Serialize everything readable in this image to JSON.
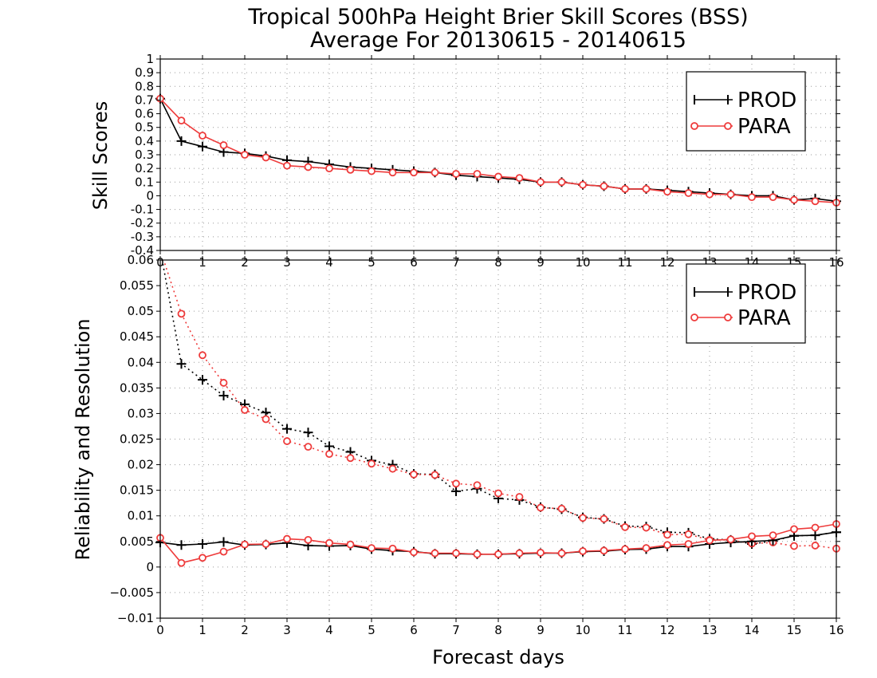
{
  "chart_data": [
    {
      "type": "line",
      "title": "Tropical 500hPa Height Brier Skill Scores (BSS)",
      "subtitle": "Average For 20130615 - 20140615",
      "xlabel": "",
      "ylabel": "Skill Scores",
      "xlim": [
        0,
        16
      ],
      "ylim": [
        -0.4,
        1.0
      ],
      "x_ticks": [
        0,
        1,
        2,
        3,
        4,
        5,
        6,
        7,
        8,
        9,
        10,
        11,
        12,
        13,
        14,
        15,
        16
      ],
      "y_ticks": [
        -0.4,
        -0.3,
        -0.2,
        -0.1,
        0,
        0.1,
        0.2,
        0.3,
        0.4,
        0.5,
        0.6,
        0.7,
        0.8,
        0.9,
        1
      ],
      "grid": true,
      "legend_position": "top-right",
      "x": [
        0,
        0.5,
        1,
        1.5,
        2,
        2.5,
        3,
        3.5,
        4,
        4.5,
        5,
        5.5,
        6,
        6.5,
        7,
        7.5,
        8,
        8.5,
        9,
        9.5,
        10,
        10.5,
        11,
        11.5,
        12,
        12.5,
        13,
        13.5,
        14,
        14.5,
        15,
        15.5,
        16
      ],
      "series": [
        {
          "name": "PROD",
          "color": "#000000",
          "marker": "plus",
          "line": "solid",
          "values": [
            0.71,
            0.4,
            0.36,
            0.32,
            0.31,
            0.29,
            0.26,
            0.25,
            0.23,
            0.21,
            0.2,
            0.19,
            0.18,
            0.17,
            0.15,
            0.14,
            0.13,
            0.12,
            0.1,
            0.1,
            0.08,
            0.07,
            0.05,
            0.05,
            0.04,
            0.03,
            0.02,
            0.01,
            0.0,
            0.0,
            -0.03,
            -0.02,
            -0.04
          ]
        },
        {
          "name": "PARA",
          "color": "#ee3b3b",
          "marker": "circle",
          "line": "solid",
          "values": [
            0.71,
            0.55,
            0.44,
            0.37,
            0.3,
            0.28,
            0.22,
            0.21,
            0.2,
            0.19,
            0.18,
            0.17,
            0.17,
            0.17,
            0.16,
            0.16,
            0.14,
            0.13,
            0.1,
            0.1,
            0.08,
            0.07,
            0.05,
            0.05,
            0.03,
            0.02,
            0.01,
            0.01,
            -0.01,
            -0.01,
            -0.03,
            -0.04,
            -0.05
          ]
        }
      ]
    },
    {
      "type": "line",
      "title": "",
      "xlabel": "Forecast days",
      "ylabel": "Reliability and Resolution",
      "xlim": [
        0,
        16
      ],
      "ylim": [
        -0.01,
        0.06
      ],
      "x_ticks": [
        0,
        1,
        2,
        3,
        4,
        5,
        6,
        7,
        8,
        9,
        10,
        11,
        12,
        13,
        14,
        15,
        16
      ],
      "y_ticks": [
        -0.01,
        -0.005,
        0,
        0.005,
        0.01,
        0.015,
        0.02,
        0.025,
        0.03,
        0.035,
        0.04,
        0.045,
        0.05,
        0.055,
        0.06
      ],
      "y_tick_labels": [
        "−0.01",
        "−0.005",
        "0",
        "0.005",
        "0.01",
        "0.015",
        "0.02",
        "0.025",
        "0.03",
        "0.035",
        "0.04",
        "0.045",
        "0.05",
        "0.055",
        "0.06"
      ],
      "grid": true,
      "legend_position": "top-right",
      "x": [
        0,
        0.5,
        1,
        1.5,
        2,
        2.5,
        3,
        3.5,
        4,
        4.5,
        5,
        5.5,
        6,
        6.5,
        7,
        7.5,
        8,
        8.5,
        9,
        9.5,
        10,
        10.5,
        11,
        11.5,
        12,
        12.5,
        13,
        13.5,
        14,
        14.5,
        15,
        15.5,
        16
      ],
      "series": [
        {
          "name": "PROD",
          "color": "#000000",
          "marker": "plus",
          "line": "dotted",
          "start_index": 1,
          "values": [
            0.062,
            0.0397,
            0.0366,
            0.0335,
            0.0318,
            0.0302,
            0.027,
            0.0263,
            0.0236,
            0.0225,
            0.0208,
            0.02,
            0.0182,
            0.0181,
            0.0148,
            0.0153,
            0.0134,
            0.0131,
            0.0117,
            0.0113,
            0.0097,
            0.0094,
            0.008,
            0.0079,
            0.0068,
            0.0067,
            0.0055,
            0.0053,
            0.0045,
            0.0051,
            0.0061,
            0.0062,
            0.0068
          ]
        },
        {
          "name": "PARA",
          "color": "#ee3b3b",
          "marker": "circle",
          "line": "dotted",
          "start_index": 1,
          "values": [
            0.062,
            0.0495,
            0.0414,
            0.036,
            0.0307,
            0.0289,
            0.0246,
            0.0235,
            0.0221,
            0.0213,
            0.0202,
            0.0192,
            0.0181,
            0.018,
            0.0163,
            0.016,
            0.0144,
            0.0137,
            0.0116,
            0.0114,
            0.0096,
            0.0094,
            0.0078,
            0.0077,
            0.0063,
            0.0064,
            0.0053,
            0.0053,
            0.0046,
            0.0048,
            0.0041,
            0.0042,
            0.0036
          ]
        },
        {
          "name": "PROD",
          "color": "#000000",
          "marker": "plus",
          "line": "solid",
          "values": [
            0.0048,
            0.0043,
            0.0045,
            0.0049,
            0.0043,
            0.0044,
            0.0047,
            0.0042,
            0.0041,
            0.0042,
            0.0035,
            0.0032,
            0.003,
            0.0026,
            0.0026,
            0.0025,
            0.0025,
            0.0026,
            0.0027,
            0.0027,
            0.003,
            0.0031,
            0.0034,
            0.0035,
            0.004,
            0.004,
            0.0045,
            0.0048,
            0.005,
            0.0052,
            0.0061,
            0.0062,
            0.0068
          ]
        },
        {
          "name": "PARA",
          "color": "#ee3b3b",
          "marker": "circle",
          "line": "solid",
          "values": [
            0.0057,
            0.0008,
            0.0018,
            0.003,
            0.0044,
            0.0045,
            0.0055,
            0.0053,
            0.0047,
            0.0044,
            0.0037,
            0.0036,
            0.0029,
            0.0027,
            0.0027,
            0.0025,
            0.0025,
            0.0027,
            0.0028,
            0.0027,
            0.0031,
            0.0032,
            0.0035,
            0.0037,
            0.0043,
            0.0045,
            0.0052,
            0.0054,
            0.006,
            0.0062,
            0.0074,
            0.0077,
            0.0084
          ]
        }
      ]
    }
  ],
  "legend": {
    "prod_label": "PROD",
    "para_label": "PARA"
  }
}
